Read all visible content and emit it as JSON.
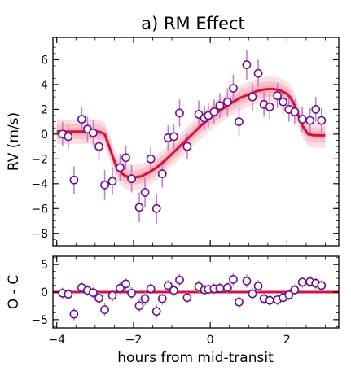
{
  "chart_data": [
    {
      "type": "scatter",
      "panel": "top",
      "title": "a) RM Effect",
      "xlabel": "",
      "ylabel": "RV (m/s)",
      "xlim": [
        -4.1,
        3.35
      ],
      "ylim": [
        -9.0,
        7.8
      ],
      "xticks": [
        -4,
        -2,
        0,
        2
      ],
      "yticks": [
        -8,
        -6,
        -4,
        -2,
        0,
        2,
        4,
        6
      ],
      "colors": {
        "points_edge": "#6a0f8e",
        "errorbar": "#c07fd0",
        "model": "#d11242",
        "band": "#f4a3ad"
      },
      "model_curve": {
        "x": [
          -4.0,
          -2.9,
          -2.75,
          -2.6,
          -2.45,
          -2.3,
          -2.15,
          -2.0,
          -1.8,
          -1.6,
          -1.4,
          -1.2,
          -1.0,
          -0.8,
          -0.6,
          -0.4,
          -0.2,
          0.0,
          0.2,
          0.4,
          0.6,
          0.8,
          1.0,
          1.2,
          1.4,
          1.6,
          1.8,
          2.0,
          2.1,
          2.2,
          2.3,
          2.4,
          2.55,
          2.7,
          3.0
        ],
        "y": [
          0.2,
          0.2,
          0.0,
          -1.3,
          -2.6,
          -3.2,
          -3.45,
          -3.5,
          -3.4,
          -3.1,
          -2.7,
          -2.2,
          -1.6,
          -1.0,
          -0.4,
          0.2,
          0.8,
          1.3,
          1.8,
          2.2,
          2.6,
          2.95,
          3.2,
          3.45,
          3.6,
          3.65,
          3.55,
          3.25,
          2.9,
          2.3,
          1.5,
          0.7,
          0.0,
          -0.1,
          -0.1
        ]
      },
      "points": {
        "x": [
          -3.85,
          -3.7,
          -3.55,
          -3.35,
          -3.2,
          -3.05,
          -2.9,
          -2.75,
          -2.55,
          -2.35,
          -2.2,
          -2.05,
          -1.85,
          -1.7,
          -1.55,
          -1.4,
          -1.25,
          -1.1,
          -0.95,
          -0.8,
          -0.6,
          -0.3,
          -0.15,
          -0.05,
          0.1,
          0.25,
          0.45,
          0.6,
          0.75,
          0.95,
          1.1,
          1.25,
          1.4,
          1.55,
          1.75,
          1.9,
          2.05,
          2.2,
          2.4,
          2.6,
          2.75,
          2.9
        ],
        "y": [
          0.0,
          -0.2,
          -3.7,
          1.2,
          0.4,
          0.1,
          -1.0,
          -4.1,
          -3.8,
          -2.7,
          -1.9,
          -3.6,
          -5.9,
          -4.7,
          -2.0,
          -6.0,
          -3.2,
          -0.3,
          -0.2,
          1.7,
          -1.0,
          1.6,
          1.3,
          1.5,
          1.8,
          2.3,
          2.6,
          3.7,
          1.0,
          5.6,
          3.0,
          4.9,
          2.4,
          2.2,
          3.1,
          2.6,
          2.0,
          1.8,
          1.2,
          1.1,
          2.0,
          1.1
        ],
        "err": [
          1.0,
          1.0,
          1.1,
          1.0,
          1.0,
          1.0,
          1.1,
          1.2,
          1.1,
          1.1,
          1.0,
          1.1,
          1.2,
          1.2,
          1.0,
          1.2,
          1.1,
          1.0,
          1.0,
          1.1,
          1.0,
          1.1,
          1.0,
          1.0,
          1.0,
          1.0,
          1.1,
          1.1,
          1.1,
          1.2,
          1.1,
          1.1,
          1.0,
          1.0,
          1.0,
          1.0,
          1.0,
          1.0,
          1.0,
          1.0,
          1.0,
          1.0
        ]
      }
    },
    {
      "type": "scatter",
      "panel": "bottom",
      "xlabel": "hours from mid-transit",
      "ylabel": "O - C",
      "xlim": [
        -4.1,
        3.35
      ],
      "ylim": [
        -6.5,
        6.5
      ],
      "xticks": [
        -4,
        -2,
        0,
        2
      ],
      "yticks": [
        -5,
        0,
        5
      ],
      "zero_line": 0,
      "points": {
        "x": [
          -3.85,
          -3.7,
          -3.55,
          -3.35,
          -3.2,
          -3.05,
          -2.9,
          -2.75,
          -2.55,
          -2.35,
          -2.2,
          -2.05,
          -1.85,
          -1.7,
          -1.55,
          -1.4,
          -1.25,
          -1.1,
          -0.95,
          -0.8,
          -0.6,
          -0.3,
          -0.15,
          -0.05,
          0.1,
          0.25,
          0.45,
          0.6,
          0.75,
          0.95,
          1.1,
          1.25,
          1.4,
          1.55,
          1.75,
          1.9,
          2.05,
          2.2,
          2.4,
          2.6,
          2.75,
          2.9
        ],
        "y": [
          -0.2,
          -0.4,
          -4.0,
          0.8,
          0.3,
          -0.1,
          -1.1,
          -3.2,
          -0.6,
          0.7,
          1.5,
          -0.2,
          -2.5,
          -1.2,
          0.6,
          -3.5,
          -1.2,
          1.2,
          0.3,
          2.2,
          -1.0,
          1.0,
          0.4,
          0.5,
          0.6,
          0.7,
          0.8,
          2.3,
          -1.8,
          2.0,
          -0.3,
          1.1,
          -1.2,
          -1.5,
          -1.4,
          -1.0,
          -0.5,
          0.4,
          1.8,
          1.9,
          1.6,
          1.2
        ],
        "err": [
          1.0,
          1.0,
          1.1,
          1.0,
          1.0,
          1.0,
          1.1,
          1.2,
          1.1,
          1.1,
          1.0,
          1.1,
          1.2,
          1.2,
          1.0,
          1.2,
          1.1,
          1.0,
          1.0,
          1.1,
          1.0,
          1.1,
          1.0,
          1.0,
          1.0,
          1.0,
          1.1,
          1.1,
          1.1,
          1.2,
          1.1,
          1.1,
          1.0,
          1.0,
          1.0,
          1.0,
          1.0,
          1.0,
          1.0,
          1.0,
          1.0,
          1.0
        ]
      }
    }
  ]
}
